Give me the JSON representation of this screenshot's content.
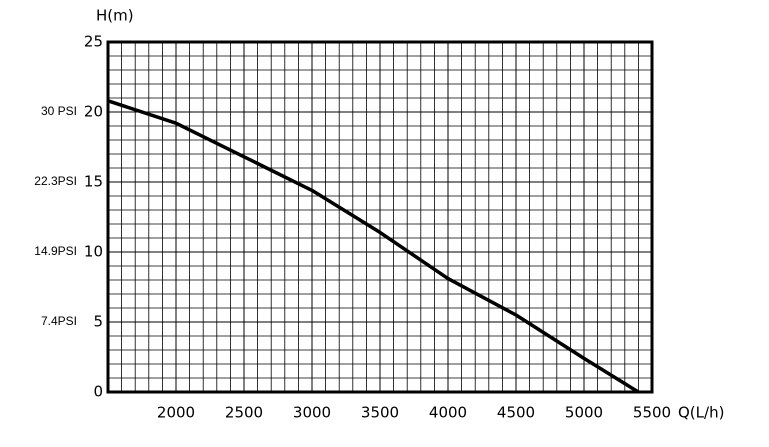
{
  "chart_data": {
    "type": "line",
    "y_label": "H(m)",
    "x_label": "Q(L/h)",
    "x": [
      1500,
      2000,
      2500,
      3000,
      3500,
      4000,
      4500,
      5000,
      5400
    ],
    "series": [
      {
        "name": "H",
        "color": "#000000",
        "values": [
          20.8,
          19.2,
          16.8,
          14.4,
          11.4,
          8.1,
          5.5,
          2.4,
          0
        ]
      }
    ],
    "xlim": [
      1500,
      5500
    ],
    "xticks": [
      2000,
      2500,
      3000,
      3500,
      4000,
      4500,
      5000,
      5500
    ],
    "ylim": [
      0,
      25
    ],
    "yticks": [
      0,
      5,
      10,
      15,
      20,
      25
    ],
    "psi_labels": [
      {
        "value": 20,
        "label": "30 PSI"
      },
      {
        "value": 15,
        "label": "22.3PSI"
      },
      {
        "value": 10,
        "label": "14.9PSI"
      },
      {
        "value": 5,
        "label": "7.4PSI"
      }
    ],
    "grid": true
  }
}
